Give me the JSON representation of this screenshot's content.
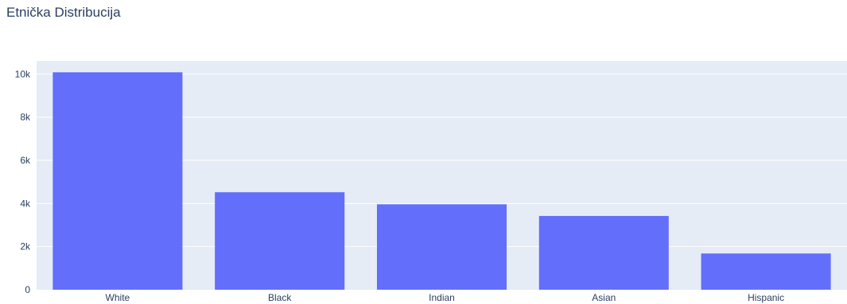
{
  "chart_data": {
    "type": "bar",
    "title": "Etnička Distribucija",
    "xlabel": "",
    "ylabel": "",
    "categories": [
      "White",
      "Black",
      "Indian",
      "Asian",
      "Hispanic"
    ],
    "values": [
      10080,
      4520,
      3960,
      3420,
      1680
    ],
    "ylim": [
      0,
      10600
    ],
    "yticks": [
      0,
      2000,
      4000,
      6000,
      8000,
      10000
    ],
    "ytick_labels": [
      "0",
      "2k",
      "4k",
      "6k",
      "8k",
      "10k"
    ],
    "grid": true,
    "legend": "none",
    "bar_color": "#636efa",
    "plot_background": "#e5ecf6",
    "gridline_color": "#ffffff",
    "text_color": "#2a3f5f"
  }
}
